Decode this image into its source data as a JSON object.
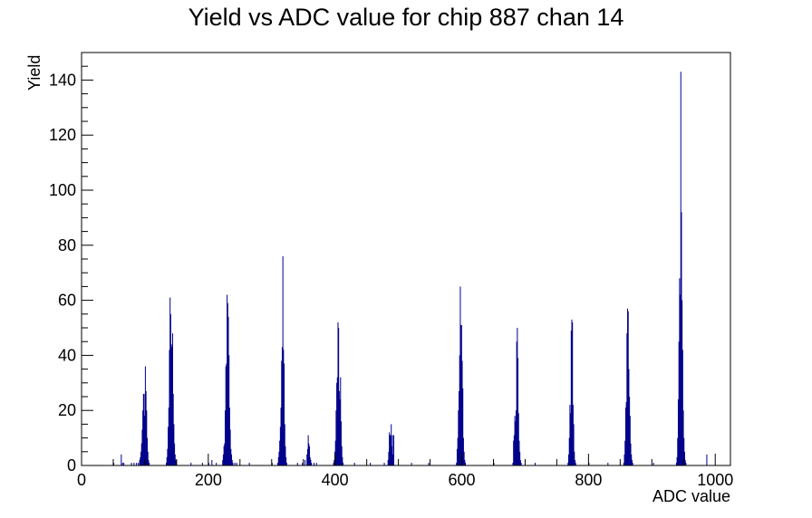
{
  "chart_data": {
    "type": "bar",
    "title": "Yield vs ADC value for chip 887 chan 14",
    "xlabel": "ADC value",
    "ylabel": "Yield",
    "xlim": [
      0,
      1024
    ],
    "ylim": [
      0,
      150
    ],
    "xticks": [
      0,
      200,
      400,
      600,
      800,
      1000
    ],
    "yticks": [
      0,
      20,
      40,
      60,
      80,
      100,
      120,
      140
    ],
    "grid": false,
    "legend": "none",
    "color": "#00008b",
    "bins": [
      [
        50,
        1
      ],
      [
        62,
        4
      ],
      [
        64,
        1
      ],
      [
        66,
        1
      ],
      [
        78,
        1
      ],
      [
        82,
        1
      ],
      [
        86,
        1
      ],
      [
        89,
        1
      ],
      [
        91,
        2
      ],
      [
        92,
        3
      ],
      [
        93,
        5
      ],
      [
        94,
        8
      ],
      [
        95,
        13
      ],
      [
        96,
        20
      ],
      [
        97,
        26
      ],
      [
        98,
        26
      ],
      [
        99,
        18
      ],
      [
        100,
        36
      ],
      [
        101,
        27
      ],
      [
        102,
        20
      ],
      [
        103,
        10
      ],
      [
        104,
        5
      ],
      [
        105,
        2
      ],
      [
        106,
        1
      ],
      [
        133,
        1
      ],
      [
        134,
        3
      ],
      [
        135,
        6
      ],
      [
        136,
        14
      ],
      [
        137,
        21
      ],
      [
        138,
        42
      ],
      [
        139,
        61
      ],
      [
        140,
        55
      ],
      [
        141,
        44
      ],
      [
        142,
        43
      ],
      [
        143,
        48
      ],
      [
        144,
        26
      ],
      [
        145,
        15
      ],
      [
        146,
        8
      ],
      [
        147,
        4
      ],
      [
        148,
        2
      ],
      [
        149,
        1
      ],
      [
        172,
        1
      ],
      [
        190,
        1
      ],
      [
        200,
        1
      ],
      [
        205,
        2
      ],
      [
        212,
        1
      ],
      [
        222,
        2
      ],
      [
        223,
        4
      ],
      [
        224,
        7
      ],
      [
        225,
        8
      ],
      [
        226,
        20
      ],
      [
        227,
        36
      ],
      [
        228,
        37
      ],
      [
        229,
        62
      ],
      [
        230,
        59
      ],
      [
        231,
        54
      ],
      [
        232,
        40
      ],
      [
        233,
        21
      ],
      [
        234,
        13
      ],
      [
        235,
        6
      ],
      [
        236,
        4
      ],
      [
        237,
        2
      ],
      [
        238,
        1
      ],
      [
        241,
        1
      ],
      [
        244,
        1
      ],
      [
        264,
        1
      ],
      [
        300,
        1
      ],
      [
        309,
        1
      ],
      [
        310,
        3
      ],
      [
        311,
        5
      ],
      [
        312,
        9
      ],
      [
        313,
        14
      ],
      [
        314,
        21
      ],
      [
        315,
        38
      ],
      [
        316,
        43
      ],
      [
        317,
        76
      ],
      [
        318,
        42
      ],
      [
        319,
        37
      ],
      [
        320,
        15
      ],
      [
        321,
        7
      ],
      [
        322,
        3
      ],
      [
        323,
        1
      ],
      [
        340,
        1
      ],
      [
        348,
        1
      ],
      [
        352,
        2
      ],
      [
        355,
        4
      ],
      [
        356,
        6
      ],
      [
        357,
        11
      ],
      [
        358,
        8
      ],
      [
        359,
        7
      ],
      [
        360,
        3
      ],
      [
        361,
        2
      ],
      [
        362,
        1
      ],
      [
        366,
        1
      ],
      [
        370,
        1
      ],
      [
        397,
        1
      ],
      [
        398,
        2
      ],
      [
        399,
        5
      ],
      [
        400,
        9
      ],
      [
        401,
        20
      ],
      [
        402,
        30
      ],
      [
        403,
        32
      ],
      [
        404,
        52
      ],
      [
        405,
        50
      ],
      [
        406,
        27
      ],
      [
        407,
        24
      ],
      [
        408,
        32
      ],
      [
        409,
        16
      ],
      [
        410,
        7
      ],
      [
        411,
        3
      ],
      [
        412,
        1
      ],
      [
        430,
        1
      ],
      [
        455,
        1
      ],
      [
        477,
        1
      ],
      [
        483,
        2
      ],
      [
        484,
        5
      ],
      [
        485,
        12
      ],
      [
        486,
        11
      ],
      [
        487,
        11
      ],
      [
        488,
        15
      ],
      [
        489,
        7
      ],
      [
        490,
        11
      ],
      [
        491,
        4
      ],
      [
        492,
        11
      ],
      [
        520,
        1
      ],
      [
        547,
        1
      ],
      [
        591,
        1
      ],
      [
        592,
        6
      ],
      [
        593,
        10
      ],
      [
        594,
        20
      ],
      [
        595,
        27
      ],
      [
        596,
        40
      ],
      [
        597,
        65
      ],
      [
        598,
        51
      ],
      [
        599,
        51
      ],
      [
        600,
        38
      ],
      [
        601,
        28
      ],
      [
        602,
        10
      ],
      [
        603,
        5
      ],
      [
        604,
        2
      ],
      [
        605,
        1
      ],
      [
        650,
        1
      ],
      [
        680,
        1
      ],
      [
        681,
        9
      ],
      [
        682,
        11
      ],
      [
        683,
        18
      ],
      [
        684,
        16
      ],
      [
        685,
        20
      ],
      [
        686,
        45
      ],
      [
        687,
        50
      ],
      [
        688,
        39
      ],
      [
        689,
        19
      ],
      [
        690,
        9
      ],
      [
        691,
        5
      ],
      [
        692,
        2
      ],
      [
        693,
        1
      ],
      [
        715,
        1
      ],
      [
        767,
        1
      ],
      [
        768,
        4
      ],
      [
        769,
        10
      ],
      [
        770,
        22
      ],
      [
        771,
        19
      ],
      [
        772,
        49
      ],
      [
        773,
        53
      ],
      [
        774,
        52
      ],
      [
        775,
        22
      ],
      [
        776,
        15
      ],
      [
        777,
        5
      ],
      [
        778,
        2
      ],
      [
        779,
        1
      ],
      [
        800,
        1
      ],
      [
        830,
        1
      ],
      [
        855,
        1
      ],
      [
        856,
        4
      ],
      [
        857,
        9
      ],
      [
        858,
        21
      ],
      [
        859,
        23
      ],
      [
        860,
        48
      ],
      [
        861,
        57
      ],
      [
        862,
        56
      ],
      [
        863,
        35
      ],
      [
        864,
        25
      ],
      [
        865,
        18
      ],
      [
        866,
        8
      ],
      [
        867,
        4
      ],
      [
        868,
        2
      ],
      [
        869,
        1
      ],
      [
        902,
        1
      ],
      [
        938,
        1
      ],
      [
        939,
        3
      ],
      [
        940,
        10
      ],
      [
        941,
        24
      ],
      [
        942,
        45
      ],
      [
        943,
        68
      ],
      [
        944,
        62
      ],
      [
        945,
        143
      ],
      [
        946,
        92
      ],
      [
        947,
        60
      ],
      [
        948,
        42
      ],
      [
        949,
        20
      ],
      [
        950,
        10
      ],
      [
        951,
        5
      ],
      [
        952,
        2
      ],
      [
        953,
        1
      ],
      [
        986,
        4
      ]
    ]
  }
}
